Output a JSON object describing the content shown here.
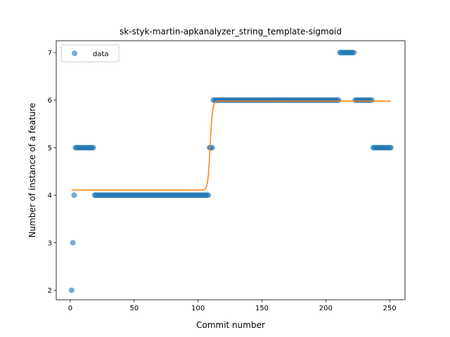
{
  "chart_data": {
    "type": "scatter",
    "title": "sk-styk-martin-apkanalyzer_string_template-sigmoid",
    "xlabel": "Commit number",
    "ylabel": "Number of instance of a feature",
    "xlim": [
      -11,
      262
    ],
    "ylim": [
      1.8,
      7.25
    ],
    "xticks": [
      0,
      50,
      100,
      150,
      200,
      250
    ],
    "yticks": [
      2,
      3,
      4,
      5,
      6,
      7
    ],
    "grid": false,
    "legend": {
      "position": "top-left",
      "entries": [
        "data"
      ]
    },
    "colors": {
      "data": "#1f77b4",
      "fit": "#ff7f0e"
    },
    "series": [
      {
        "name": "data",
        "kind": "scatter",
        "runs": [
          {
            "x_start": 1,
            "x_end": 1,
            "y": 2
          },
          {
            "x_start": 2,
            "x_end": 2,
            "y": 3
          },
          {
            "x_start": 3,
            "x_end": 3,
            "y": 4
          },
          {
            "x_start": 4,
            "x_end": 18,
            "y": 5
          },
          {
            "x_start": 19,
            "x_end": 108,
            "y": 4
          },
          {
            "x_start": 109,
            "x_end": 111,
            "y": 5
          },
          {
            "x_start": 112,
            "x_end": 210,
            "y": 6
          },
          {
            "x_start": 211,
            "x_end": 222,
            "y": 7
          },
          {
            "x_start": 223,
            "x_end": 236,
            "y": 6
          },
          {
            "x_start": 237,
            "x_end": 251,
            "y": 5
          }
        ]
      },
      {
        "kind": "line",
        "sigmoid": {
          "low": 4.11,
          "high": 5.98,
          "midpoint": 109.5,
          "steepness": 1.1,
          "x_start": 1,
          "x_end": 251
        }
      }
    ]
  }
}
